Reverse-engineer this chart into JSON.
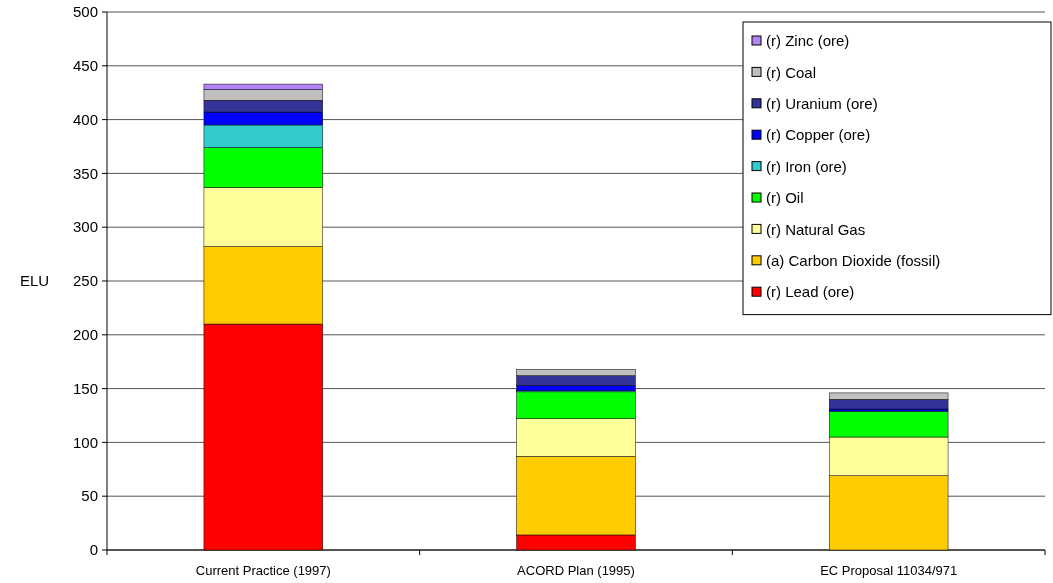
{
  "chart_data": {
    "type": "bar",
    "stacked": true,
    "ylabel": "ELU",
    "categories": [
      "Current Practice (1997)",
      "ACORD Plan (1995)",
      "EC Proposal 11034/971"
    ],
    "ylim": [
      0,
      500
    ],
    "yticks": [
      0,
      50,
      100,
      150,
      200,
      250,
      300,
      350,
      400,
      450,
      500
    ],
    "grid": "y",
    "legend": "top right",
    "series": [
      {
        "name": "(r) Lead (ore)",
        "color": "#ff0000",
        "values": [
          210,
          14,
          0
        ]
      },
      {
        "name": "(a) Carbon Dioxide (fossil)",
        "color": "#ffcc00",
        "values": [
          72,
          73,
          69
        ]
      },
      {
        "name": "(r) Natural Gas",
        "color": "#ffff99",
        "values": [
          55,
          35,
          36
        ]
      },
      {
        "name": "(r) Oil",
        "color": "#00ff00",
        "values": [
          37,
          25,
          24
        ]
      },
      {
        "name": "(r) Iron (ore)",
        "color": "#33cccc",
        "values": [
          21,
          1,
          0
        ]
      },
      {
        "name": "(r) Copper (ore)",
        "color": "#0000ff",
        "values": [
          12,
          5,
          2
        ]
      },
      {
        "name": "(r) Uranium (ore)",
        "color": "#333399",
        "values": [
          11,
          9,
          9
        ]
      },
      {
        "name": "(r) Coal",
        "color": "#c0c0c0",
        "values": [
          10,
          6,
          6
        ]
      },
      {
        "name": "(r) Zinc (ore)",
        "color": "#b383f5",
        "values": [
          5,
          0,
          0
        ]
      }
    ]
  }
}
